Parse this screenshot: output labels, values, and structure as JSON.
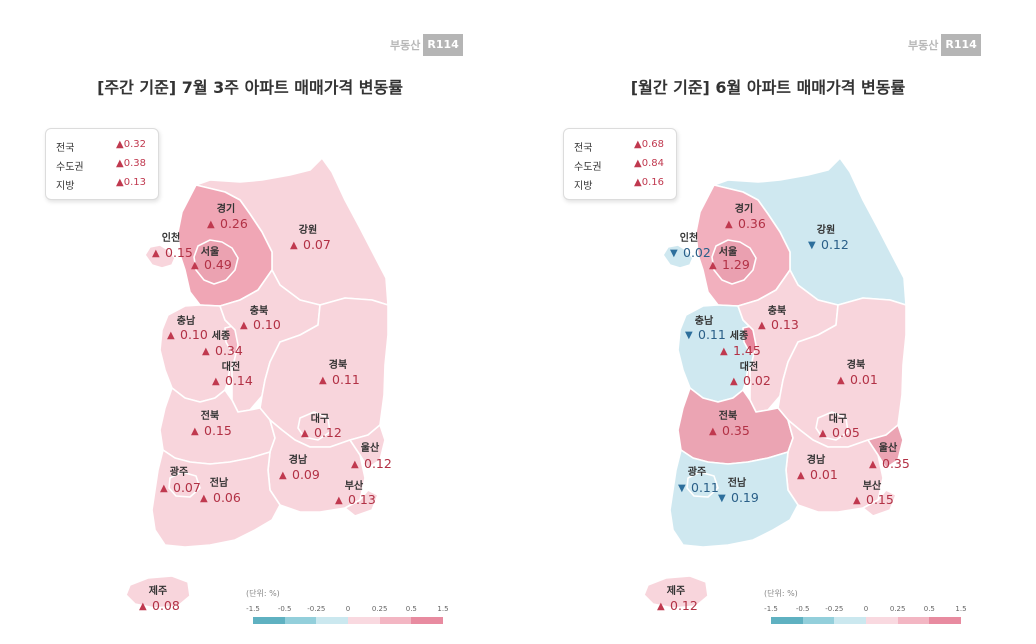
{
  "brand": {
    "text": "부동산",
    "box": "R114"
  },
  "legend": {
    "unit": "(단위: %)",
    "ticks": [
      "-1.5",
      "-0.5",
      "-0.25",
      "0",
      "0.25",
      "0.5",
      "1.5"
    ],
    "colors": [
      "#5fb1c1",
      "#93cfdb",
      "#cbe8ef",
      "#f9d9e0",
      "#f3b6c3",
      "#e88ba0"
    ]
  },
  "panels": [
    {
      "title": "[주간 기준] 7월 3주 아파트 매매가격 변동률",
      "summary": [
        {
          "label": "전국",
          "arrow": "▲",
          "value": "0.32"
        },
        {
          "label": "수도권",
          "arrow": "▲",
          "value": "0.38"
        },
        {
          "label": "지방",
          "arrow": "▲",
          "value": "0.13"
        }
      ],
      "regions": {
        "gyeonggi": {
          "name": "경기",
          "dir": "up",
          "value": "0.26",
          "color": "#f0a6b5"
        },
        "seoul": {
          "name": "서울",
          "dir": "up",
          "value": "0.49",
          "color": "#eba2b1"
        },
        "incheon": {
          "name": "인천",
          "dir": "up",
          "value": "0.15",
          "color": "#f8d5dc"
        },
        "gangwon": {
          "name": "강원",
          "dir": "up",
          "value": "0.07",
          "color": "#f8d5dc"
        },
        "chungnam": {
          "name": "충남",
          "dir": "up",
          "value": "0.10",
          "color": "#f8d5dc"
        },
        "chungbuk": {
          "name": "충북",
          "dir": "up",
          "value": "0.10",
          "color": "#f8d5dc"
        },
        "sejong": {
          "name": "세종",
          "dir": "up",
          "value": "0.34",
          "color": "#f3b9c5"
        },
        "daejeon": {
          "name": "대전",
          "dir": "up",
          "value": "0.14",
          "color": "#f8d5dc"
        },
        "gyeongbuk": {
          "name": "경북",
          "dir": "up",
          "value": "0.11",
          "color": "#f8d5dc"
        },
        "jeonbuk": {
          "name": "전북",
          "dir": "up",
          "value": "0.15",
          "color": "#f8d5dc"
        },
        "daegu": {
          "name": "대구",
          "dir": "up",
          "value": "0.12",
          "color": "#f8d5dc"
        },
        "ulsan": {
          "name": "울산",
          "dir": "up",
          "value": "0.12",
          "color": "#f8d5dc"
        },
        "gwangju": {
          "name": "광주",
          "dir": "up",
          "value": "0.07",
          "color": "#f8d5dc"
        },
        "jeonnam": {
          "name": "전남",
          "dir": "up",
          "value": "0.06",
          "color": "#f8d5dc"
        },
        "gyeongnam": {
          "name": "경남",
          "dir": "up",
          "value": "0.09",
          "color": "#f8d5dc"
        },
        "busan": {
          "name": "부산",
          "dir": "up",
          "value": "0.13",
          "color": "#f8d5dc"
        },
        "jeju": {
          "name": "제주",
          "dir": "up",
          "value": "0.08",
          "color": "#f8d5dc"
        }
      }
    },
    {
      "title": "[월간 기준] 6월 아파트 매매가격 변동률",
      "summary": [
        {
          "label": "전국",
          "arrow": "▲",
          "value": "0.68"
        },
        {
          "label": "수도권",
          "arrow": "▲",
          "value": "0.84"
        },
        {
          "label": "지방",
          "arrow": "▲",
          "value": "0.16"
        }
      ],
      "regions": {
        "gyeonggi": {
          "name": "경기",
          "dir": "up",
          "value": "0.36",
          "color": "#f2b0be"
        },
        "seoul": {
          "name": "서울",
          "dir": "up",
          "value": "1.29",
          "color": "#eaa0b0"
        },
        "incheon": {
          "name": "인천",
          "dir": "down",
          "value": "0.02",
          "color": "#cfe8f0"
        },
        "gangwon": {
          "name": "강원",
          "dir": "down",
          "value": "0.12",
          "color": "#cfe8f0"
        },
        "chungnam": {
          "name": "충남",
          "dir": "down",
          "value": "0.11",
          "color": "#cfe8f0"
        },
        "chungbuk": {
          "name": "충북",
          "dir": "up",
          "value": "0.13",
          "color": "#f8d5dc"
        },
        "sejong": {
          "name": "세종",
          "dir": "up",
          "value": "1.45",
          "color": "#e9889d"
        },
        "daejeon": {
          "name": "대전",
          "dir": "up",
          "value": "0.02",
          "color": "#f8d5dc"
        },
        "gyeongbuk": {
          "name": "경북",
          "dir": "up",
          "value": "0.01",
          "color": "#f8d5dc"
        },
        "jeonbuk": {
          "name": "전북",
          "dir": "up",
          "value": "0.35",
          "color": "#eba4b3"
        },
        "daegu": {
          "name": "대구",
          "dir": "up",
          "value": "0.05",
          "color": "#f8d5dc"
        },
        "ulsan": {
          "name": "울산",
          "dir": "up",
          "value": "0.35",
          "color": "#eba4b3"
        },
        "gwangju": {
          "name": "광주",
          "dir": "down",
          "value": "0.11",
          "color": "#cfe8f0"
        },
        "jeonnam": {
          "name": "전남",
          "dir": "down",
          "value": "0.19",
          "color": "#cfe8f0"
        },
        "gyeongnam": {
          "name": "경남",
          "dir": "up",
          "value": "0.01",
          "color": "#f8d5dc"
        },
        "busan": {
          "name": "부산",
          "dir": "up",
          "value": "0.15",
          "color": "#f8d5dc"
        },
        "jeju": {
          "name": "제주",
          "dir": "up",
          "value": "0.12",
          "color": "#f8d5dc"
        }
      }
    }
  ]
}
